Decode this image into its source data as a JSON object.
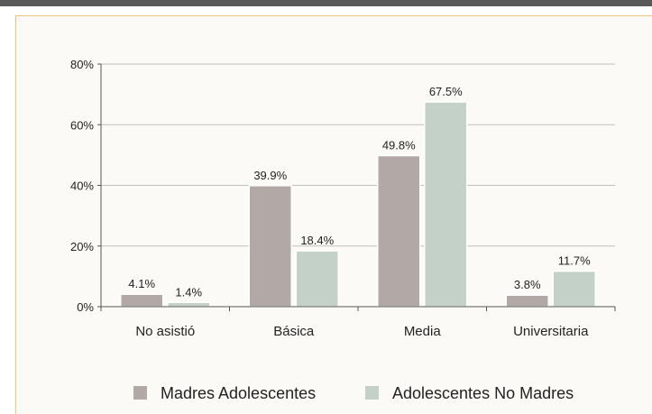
{
  "colors": {
    "topbar": "#595959",
    "panel_bg": "#fbfaf6",
    "panel_border": "#e7c27a",
    "grid": "#bfbfbf",
    "axis": "#555555",
    "series": [
      "#b2a8a6",
      "#c4d1c9"
    ]
  },
  "chart_data": {
    "type": "bar",
    "title": "",
    "xlabel": "",
    "ylabel": "",
    "categories": [
      "No asistió",
      "Básica",
      "Media",
      "Universitaria"
    ],
    "series": [
      {
        "name": "Madres Adolescentes",
        "values": [
          4.1,
          39.9,
          49.8,
          3.8
        ],
        "labels": [
          "4.1%",
          "39.9%",
          "49.8%",
          "3.8%"
        ]
      },
      {
        "name": "Adolescentes No Madres",
        "values": [
          1.4,
          18.4,
          67.5,
          11.7
        ],
        "labels": [
          "1.4%",
          "18.4%",
          "67.5%",
          "11.7%"
        ]
      }
    ],
    "ylim": [
      0,
      80
    ],
    "yticks": [
      0,
      20,
      40,
      60,
      80
    ],
    "ytick_labels": [
      "0%",
      "20%",
      "40%",
      "60%",
      "80%"
    ],
    "grid": true,
    "legend_position": "bottom"
  }
}
